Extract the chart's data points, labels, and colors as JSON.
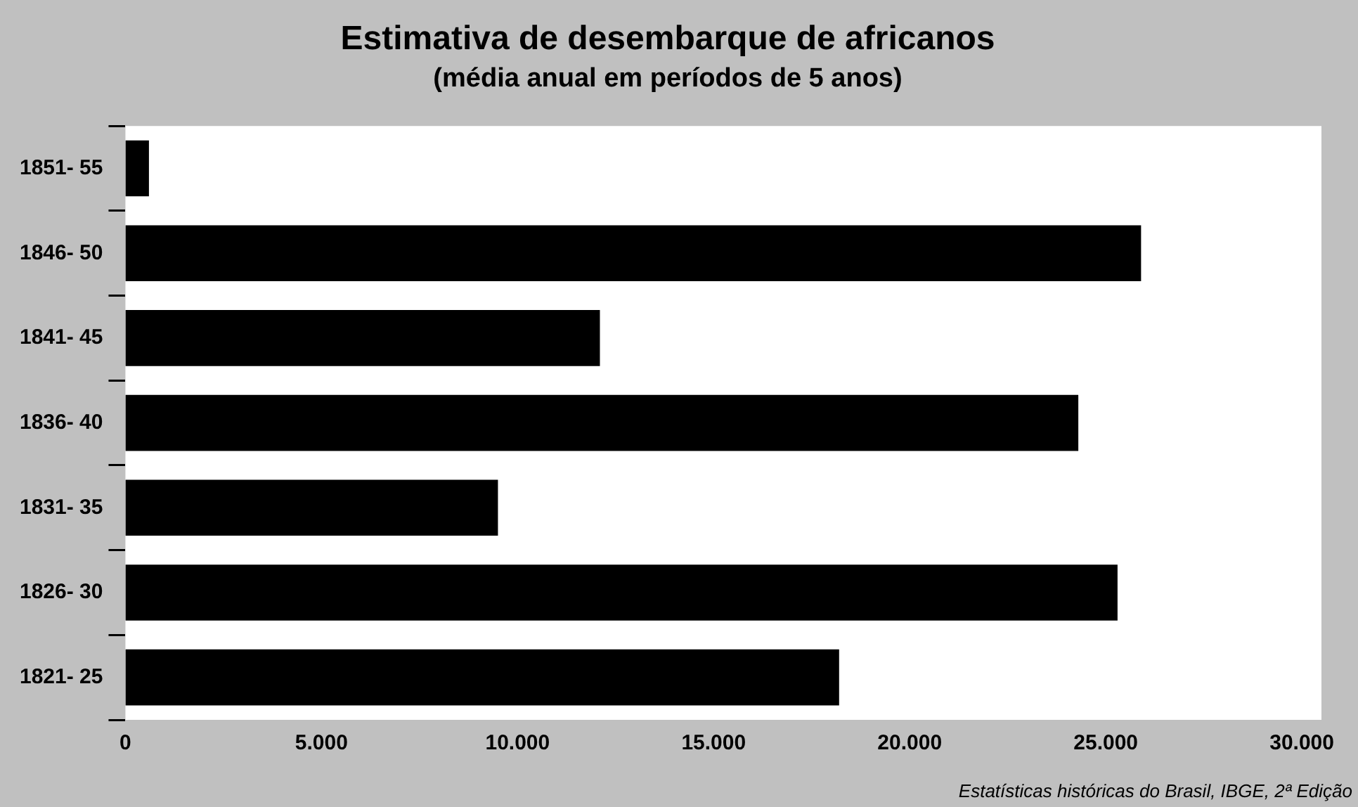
{
  "chart_data": {
    "type": "bar",
    "orientation": "horizontal",
    "title": "Estimativa de desembarque de africanos",
    "subtitle": "(média anual em períodos de 5 anos)",
    "categories": [
      "1851- 55",
      "1846- 50",
      "1841- 45",
      "1836- 40",
      "1831- 35",
      "1826- 30",
      "1821- 25"
    ],
    "values": [
      600,
      25900,
      12100,
      24300,
      9500,
      25300,
      18200
    ],
    "color": "#000000",
    "xlim": [
      0,
      30500
    ],
    "xticks": [
      0,
      {
        "value": 5000,
        "label": "5.000"
      },
      {
        "value": 10000,
        "label": "10.000"
      },
      {
        "value": 15000,
        "label": "15.000"
      },
      {
        "value": 20000,
        "label": "20.000"
      },
      {
        "value": 25000,
        "label": "25.000"
      },
      {
        "value": 30000,
        "label": "30.000"
      }
    ],
    "grid": false,
    "legend": false,
    "annotations": [
      "Estatísticas históricas do Brasil, IBGE, 2ª Edição"
    ]
  }
}
